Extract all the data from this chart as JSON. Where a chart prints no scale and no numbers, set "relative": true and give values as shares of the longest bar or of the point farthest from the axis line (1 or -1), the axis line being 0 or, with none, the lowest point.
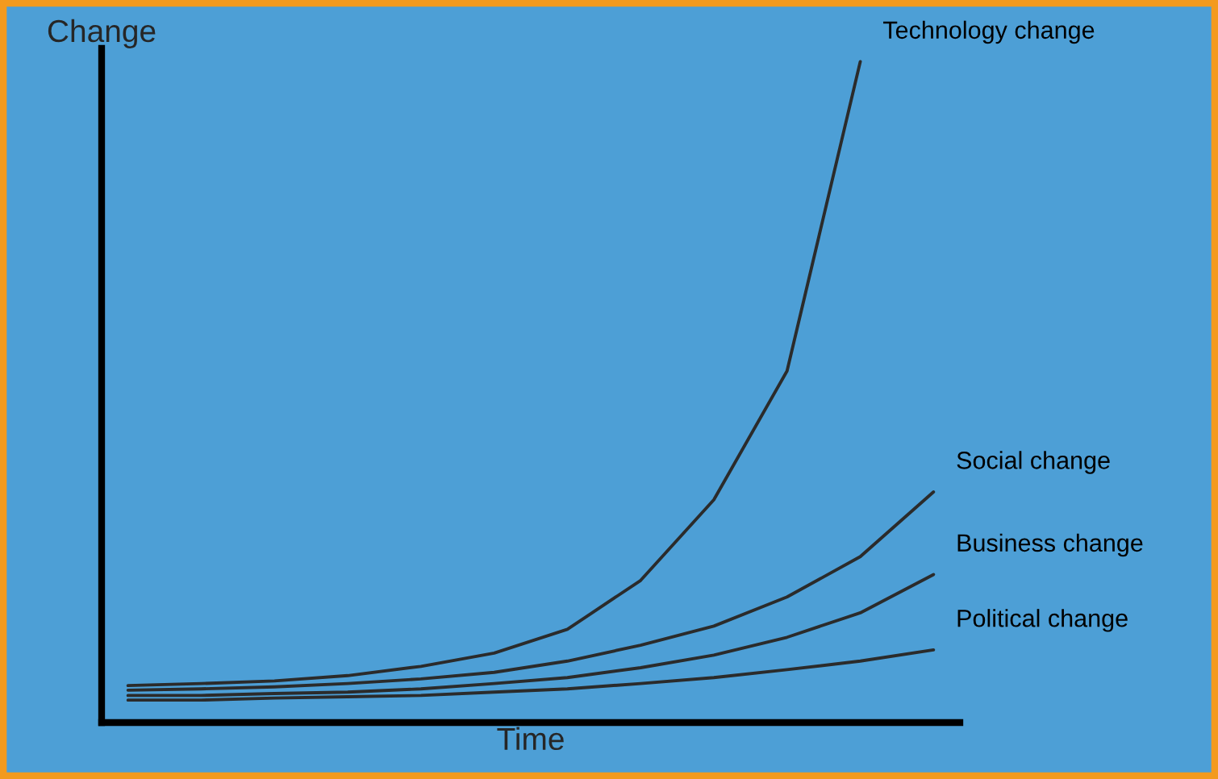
{
  "chart_data": {
    "type": "line",
    "relative": true,
    "xlabel": "Time",
    "ylabel": "Change",
    "legend": false,
    "grid": false,
    "marker": "none",
    "line_style": "solid",
    "tick_labels": false,
    "categories": [
      null,
      null,
      null,
      null,
      null,
      null,
      null,
      null,
      null,
      null,
      null,
      null
    ],
    "series": [
      {
        "name": "Technology change",
        "color": "#2b2b2b",
        "values": [
          0.056,
          0.059,
          0.063,
          0.071,
          0.085,
          0.105,
          0.141,
          0.215,
          0.337,
          0.532,
          1,
          null
        ]
      },
      {
        "name": "Social change",
        "color": "#2b2b2b",
        "values": [
          0.049,
          0.051,
          0.054,
          0.059,
          0.066,
          0.076,
          0.093,
          0.117,
          0.146,
          0.19,
          0.251,
          0.349
        ]
      },
      {
        "name": "Business change",
        "color": "#2b2b2b",
        "values": [
          0.041,
          0.041,
          0.044,
          0.046,
          0.051,
          0.059,
          0.068,
          0.083,
          0.102,
          0.129,
          0.166,
          0.224
        ]
      },
      {
        "name": "Political change",
        "color": "#2b2b2b",
        "values": [
          0.034,
          0.034,
          0.037,
          0.039,
          0.041,
          0.046,
          0.051,
          0.059,
          0.068,
          0.08,
          0.093,
          0.11
        ]
      }
    ]
  }
}
